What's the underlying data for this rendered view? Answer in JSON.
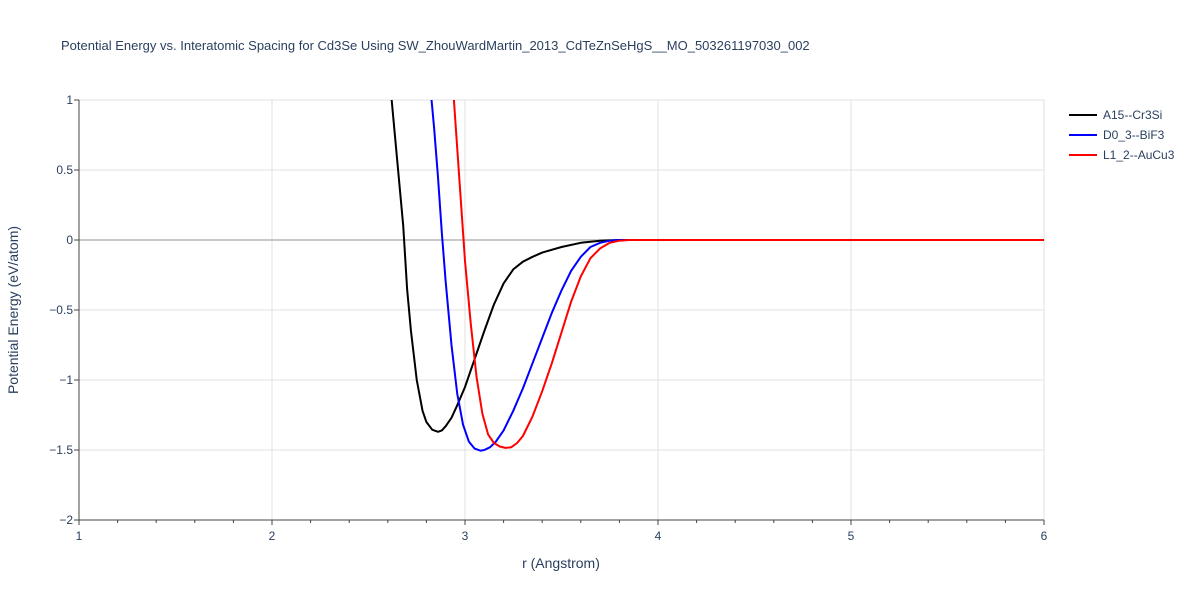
{
  "chart_data": {
    "type": "line",
    "title": "Potential Energy vs. Interatomic Spacing for Cd3Se Using SW_ZhouWardMartin_2013_CdTeZnSeHgS__MO_503261197030_002",
    "xlabel": "r (Angstrom)",
    "ylabel": "Potential Energy (eV/atom)",
    "xlim": [
      1,
      6
    ],
    "ylim": [
      -2,
      1
    ],
    "x_ticks": [
      1,
      2,
      3,
      4,
      5,
      6
    ],
    "x_tick_labels": [
      "1",
      "2",
      "3",
      "4",
      "5",
      "6"
    ],
    "y_ticks": [
      -2,
      -1.5,
      -1,
      -0.5,
      0,
      0.5,
      1
    ],
    "y_tick_labels": [
      "−2",
      "−1.5",
      "−1",
      "−0.5",
      "0",
      "0.5",
      "1"
    ],
    "grid": true,
    "legend_position": "top-right",
    "series": [
      {
        "name": "A15--Cr3Si",
        "color": "#000000",
        "x": [
          2.6,
          2.62,
          2.65,
          2.68,
          2.7,
          2.72,
          2.75,
          2.78,
          2.8,
          2.83,
          2.86,
          2.88,
          2.9,
          2.93,
          2.96,
          3.0,
          3.05,
          3.1,
          3.15,
          3.2,
          3.25,
          3.3,
          3.35,
          3.4,
          3.5,
          3.6,
          3.7,
          3.8,
          3.9,
          4.0,
          4.5,
          5.0,
          5.5,
          6.0
        ],
        "y": [
          1.2,
          1.0,
          0.55,
          0.1,
          -0.35,
          -0.65,
          -1.0,
          -1.22,
          -1.3,
          -1.355,
          -1.37,
          -1.36,
          -1.33,
          -1.27,
          -1.18,
          -1.05,
          -0.85,
          -0.65,
          -0.46,
          -0.31,
          -0.21,
          -0.155,
          -0.12,
          -0.09,
          -0.05,
          -0.02,
          -0.005,
          0.0,
          0.0,
          0.0,
          0.0,
          0.0,
          0.0,
          0.0
        ]
      },
      {
        "name": "D0_3--BiF3",
        "color": "#0000ff",
        "x": [
          2.82,
          2.84,
          2.86,
          2.88,
          2.9,
          2.93,
          2.96,
          2.99,
          3.02,
          3.05,
          3.08,
          3.1,
          3.13,
          3.16,
          3.2,
          3.25,
          3.3,
          3.35,
          3.4,
          3.45,
          3.5,
          3.55,
          3.6,
          3.65,
          3.7,
          3.75,
          3.8,
          3.85,
          4.0,
          4.5,
          5.0,
          5.5,
          6.0
        ],
        "y": [
          1.1,
          0.8,
          0.45,
          0.05,
          -0.3,
          -0.75,
          -1.1,
          -1.32,
          -1.44,
          -1.49,
          -1.505,
          -1.5,
          -1.48,
          -1.44,
          -1.36,
          -1.22,
          -1.06,
          -0.88,
          -0.7,
          -0.52,
          -0.36,
          -0.22,
          -0.12,
          -0.05,
          -0.02,
          -0.005,
          0.0,
          0.0,
          0.0,
          0.0,
          0.0,
          0.0,
          0.0
        ]
      },
      {
        "name": "L1_2--AuCu3",
        "color": "#ff0000",
        "x": [
          2.94,
          2.96,
          2.98,
          3.0,
          3.03,
          3.06,
          3.09,
          3.12,
          3.15,
          3.18,
          3.21,
          3.24,
          3.27,
          3.3,
          3.35,
          3.4,
          3.45,
          3.5,
          3.55,
          3.6,
          3.65,
          3.7,
          3.75,
          3.8,
          3.85,
          3.9,
          4.0,
          4.5,
          5.0,
          5.5,
          6.0
        ],
        "y": [
          1.05,
          0.65,
          0.25,
          -0.15,
          -0.6,
          -0.98,
          -1.24,
          -1.39,
          -1.45,
          -1.475,
          -1.485,
          -1.48,
          -1.45,
          -1.4,
          -1.26,
          -1.08,
          -0.88,
          -0.66,
          -0.44,
          -0.26,
          -0.13,
          -0.06,
          -0.02,
          -0.005,
          0.0,
          0.0,
          0.0,
          0.0,
          0.0,
          0.0,
          0.0
        ]
      }
    ]
  }
}
